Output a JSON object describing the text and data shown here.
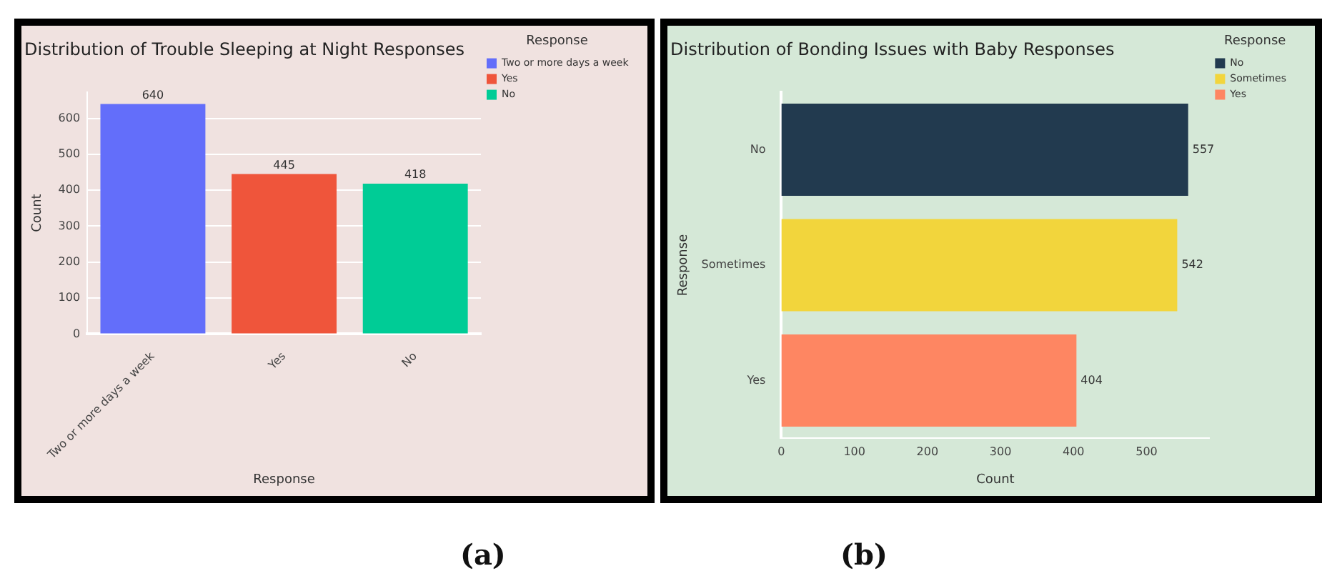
{
  "chart_data": [
    {
      "type": "bar",
      "title": "Distribution of Trouble Sleeping at Night Responses",
      "xlabel": "Response",
      "ylabel": "Count",
      "legend_title": "Response",
      "categories": [
        "Two or more days a week",
        "Yes",
        "No"
      ],
      "series": [
        {
          "name": "Two or more days a week",
          "color": "#636efa",
          "values": [
            640,
            null,
            null
          ]
        },
        {
          "name": "Yes",
          "color": "#ef553b",
          "values": [
            null,
            445,
            null
          ]
        },
        {
          "name": "No",
          "color": "#00cc96",
          "values": [
            null,
            null,
            418
          ]
        }
      ],
      "ylim": [
        0,
        673
      ],
      "yticks": [
        0,
        100,
        200,
        300,
        400,
        500,
        600
      ],
      "grid": "y",
      "legend": "right",
      "data_labels": true,
      "annotations": [
        "(a)"
      ]
    },
    {
      "type": "bar",
      "orientation": "horizontal",
      "title": "Distribution of Bonding Issues with Baby Responses",
      "xlabel": "Count",
      "ylabel": "Response",
      "legend_title": "Response",
      "categories": [
        "No",
        "Sometimes",
        "Yes"
      ],
      "series": [
        {
          "name": "No",
          "color": "#223a4f",
          "values": [
            557,
            null,
            null
          ]
        },
        {
          "name": "Sometimes",
          "color": "#f2d53c",
          "values": [
            null,
            542,
            null
          ]
        },
        {
          "name": "Yes",
          "color": "#fe8662",
          "values": [
            null,
            null,
            404
          ]
        }
      ],
      "xlim": [
        0,
        586
      ],
      "xticks": [
        0,
        100,
        200,
        300,
        400,
        500
      ],
      "grid": false,
      "legend": "right",
      "data_labels": true,
      "annotations": [
        "(b)"
      ]
    }
  ]
}
